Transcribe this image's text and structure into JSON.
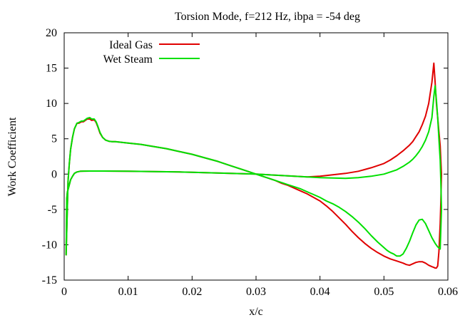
{
  "chart_data": {
    "type": "line",
    "title": "Torsion Mode, f=212 Hz, ibpa = -54 deg",
    "xlabel": "x/c",
    "ylabel": "Work Coefficient",
    "xlim": [
      0,
      0.06
    ],
    "ylim": [
      -15,
      20
    ],
    "xticks": [
      0,
      0.01,
      0.02,
      0.03,
      0.04,
      0.05,
      0.06
    ],
    "xtick_labels": [
      "0",
      "0.01",
      "0.02",
      "0.03",
      "0.04",
      "0.05",
      "0.06"
    ],
    "yticks": [
      -15,
      -10,
      -5,
      0,
      5,
      10,
      15,
      20
    ],
    "ytick_labels": [
      "-15",
      "-10",
      "-5",
      "0",
      "5",
      "10",
      "15",
      "20"
    ],
    "grid": false,
    "legend_position": "top-left",
    "series": [
      {
        "name": "Ideal Gas",
        "color": "#e00000",
        "x": [
          0.0003,
          0.0004,
          0.0005,
          0.0006,
          0.0008,
          0.001,
          0.0013,
          0.0016,
          0.002,
          0.0023,
          0.0027,
          0.003,
          0.0033,
          0.0036,
          0.004,
          0.0043,
          0.0047,
          0.005,
          0.0053,
          0.0056,
          0.006,
          0.0065,
          0.007,
          0.0075,
          0.008,
          0.009,
          0.01,
          0.012,
          0.014,
          0.016,
          0.018,
          0.02,
          0.022,
          0.024,
          0.026,
          0.028,
          0.03,
          0.031,
          0.032,
          0.033,
          0.034,
          0.035,
          0.036,
          0.037,
          0.038,
          0.039,
          0.04,
          0.041,
          0.042,
          0.043,
          0.044,
          0.045,
          0.046,
          0.047,
          0.048,
          0.049,
          0.05,
          0.051,
          0.052,
          0.053,
          0.0535,
          0.054,
          0.0545,
          0.055,
          0.0555,
          0.056,
          0.0565,
          0.057,
          0.0575,
          0.0578,
          0.058,
          0.0582,
          0.0584,
          0.0586,
          0.0588,
          0.0589,
          0.059,
          0.0589,
          0.0588,
          0.0586,
          0.0584,
          0.0582,
          0.058,
          0.0578,
          0.0575,
          0.057,
          0.0565,
          0.056,
          0.0555,
          0.055,
          0.0545,
          0.054,
          0.053,
          0.052,
          0.051,
          0.05,
          0.048,
          0.046,
          0.044,
          0.042,
          0.04,
          0.038,
          0.036,
          0.034,
          0.032,
          0.03,
          0.028,
          0.026,
          0.024,
          0.022,
          0.02,
          0.018,
          0.016,
          0.014,
          0.012,
          0.01,
          0.008,
          0.006,
          0.004,
          0.003,
          0.0025,
          0.002,
          0.0016,
          0.0013,
          0.001,
          0.0008,
          0.0006,
          0.0005,
          0.0004,
          0.0003
        ],
        "y": [
          -11.5,
          -8.0,
          -4.5,
          -1.0,
          1.5,
          3.5,
          5.2,
          6.4,
          7.2,
          7.2,
          7.4,
          7.4,
          7.6,
          7.8,
          7.8,
          7.6,
          7.7,
          7.3,
          6.6,
          5.8,
          5.2,
          4.8,
          4.65,
          4.6,
          4.6,
          4.5,
          4.4,
          4.2,
          3.9,
          3.6,
          3.2,
          2.8,
          2.3,
          1.8,
          1.2,
          0.6,
          0.0,
          -0.3,
          -0.6,
          -0.9,
          -1.3,
          -1.6,
          -2.0,
          -2.4,
          -2.8,
          -3.3,
          -3.8,
          -4.5,
          -5.3,
          -6.2,
          -7.1,
          -8.1,
          -9.0,
          -9.8,
          -10.5,
          -11.1,
          -11.6,
          -12.0,
          -12.3,
          -12.6,
          -12.8,
          -12.9,
          -12.7,
          -12.5,
          -12.4,
          -12.4,
          -12.6,
          -12.9,
          -13.1,
          -13.2,
          -13.3,
          -13.3,
          -13.0,
          -11.0,
          -7.0,
          -4.0,
          0.0,
          2.0,
          4.0,
          6.0,
          8.0,
          10.0,
          13.0,
          15.7,
          13.0,
          10.0,
          8.2,
          7.0,
          6.0,
          5.3,
          4.6,
          4.1,
          3.3,
          2.6,
          2.0,
          1.5,
          0.9,
          0.4,
          0.1,
          -0.1,
          -0.3,
          -0.4,
          -0.3,
          -0.2,
          -0.1,
          0.0,
          0.05,
          0.1,
          0.15,
          0.2,
          0.25,
          0.3,
          0.33,
          0.36,
          0.38,
          0.4,
          0.42,
          0.43,
          0.43,
          0.42,
          0.4,
          0.3,
          0.1,
          -0.3,
          -0.8,
          -1.5,
          -2.2,
          -2.5,
          -3.5,
          -11.5
        ]
      },
      {
        "name": "Wet Steam",
        "color": "#00e000",
        "x": [
          0.0003,
          0.0004,
          0.0005,
          0.0006,
          0.0008,
          0.001,
          0.0013,
          0.0016,
          0.002,
          0.0023,
          0.0027,
          0.003,
          0.0033,
          0.0036,
          0.004,
          0.0043,
          0.0047,
          0.005,
          0.0053,
          0.0056,
          0.006,
          0.0065,
          0.007,
          0.0075,
          0.008,
          0.009,
          0.01,
          0.012,
          0.014,
          0.016,
          0.018,
          0.02,
          0.022,
          0.024,
          0.026,
          0.028,
          0.03,
          0.031,
          0.032,
          0.033,
          0.034,
          0.035,
          0.036,
          0.037,
          0.038,
          0.039,
          0.04,
          0.041,
          0.042,
          0.043,
          0.044,
          0.045,
          0.046,
          0.047,
          0.048,
          0.049,
          0.05,
          0.0505,
          0.051,
          0.0515,
          0.052,
          0.0525,
          0.053,
          0.0535,
          0.054,
          0.0545,
          0.055,
          0.0555,
          0.056,
          0.0565,
          0.057,
          0.0575,
          0.058,
          0.0584,
          0.0588,
          0.059,
          0.0589,
          0.0588,
          0.0586,
          0.0584,
          0.0582,
          0.058,
          0.0578,
          0.0575,
          0.057,
          0.0565,
          0.056,
          0.0555,
          0.055,
          0.0545,
          0.054,
          0.053,
          0.052,
          0.051,
          0.05,
          0.048,
          0.046,
          0.044,
          0.042,
          0.04,
          0.038,
          0.036,
          0.034,
          0.032,
          0.03,
          0.028,
          0.026,
          0.024,
          0.022,
          0.02,
          0.018,
          0.016,
          0.014,
          0.012,
          0.01,
          0.008,
          0.006,
          0.004,
          0.003,
          0.0025,
          0.002,
          0.0016,
          0.0013,
          0.001,
          0.0008,
          0.0006,
          0.0005,
          0.0004,
          0.0003
        ],
        "y": [
          -11.5,
          -8.0,
          -4.5,
          -1.0,
          1.5,
          3.5,
          5.2,
          6.4,
          7.2,
          7.3,
          7.5,
          7.5,
          7.7,
          7.9,
          8.0,
          7.8,
          7.8,
          7.4,
          6.7,
          5.9,
          5.2,
          4.8,
          4.65,
          4.6,
          4.6,
          4.5,
          4.4,
          4.2,
          3.9,
          3.6,
          3.2,
          2.8,
          2.3,
          1.8,
          1.2,
          0.6,
          0.0,
          -0.3,
          -0.6,
          -0.9,
          -1.2,
          -1.5,
          -1.8,
          -2.1,
          -2.5,
          -2.9,
          -3.3,
          -3.8,
          -4.2,
          -4.7,
          -5.3,
          -6.0,
          -6.8,
          -7.7,
          -8.7,
          -9.6,
          -10.4,
          -10.8,
          -11.1,
          -11.3,
          -11.6,
          -11.6,
          -11.3,
          -10.5,
          -9.5,
          -8.3,
          -7.2,
          -6.5,
          -6.4,
          -7.0,
          -8.0,
          -9.0,
          -9.8,
          -10.3,
          -10.6,
          -5.0,
          -1.0,
          2.0,
          5.0,
          8.0,
          10.5,
          12.5,
          11.0,
          8.0,
          6.0,
          4.8,
          3.9,
          3.2,
          2.6,
          2.1,
          1.7,
          1.1,
          0.6,
          0.3,
          0.0,
          -0.3,
          -0.5,
          -0.6,
          -0.55,
          -0.5,
          -0.4,
          -0.3,
          -0.2,
          -0.1,
          0.0,
          0.05,
          0.1,
          0.15,
          0.2,
          0.25,
          0.3,
          0.33,
          0.36,
          0.38,
          0.4,
          0.42,
          0.43,
          0.43,
          0.42,
          0.4,
          0.3,
          0.1,
          -0.3,
          -0.8,
          -1.5,
          -2.2,
          -2.5,
          -3.5,
          -11.5
        ]
      }
    ]
  }
}
